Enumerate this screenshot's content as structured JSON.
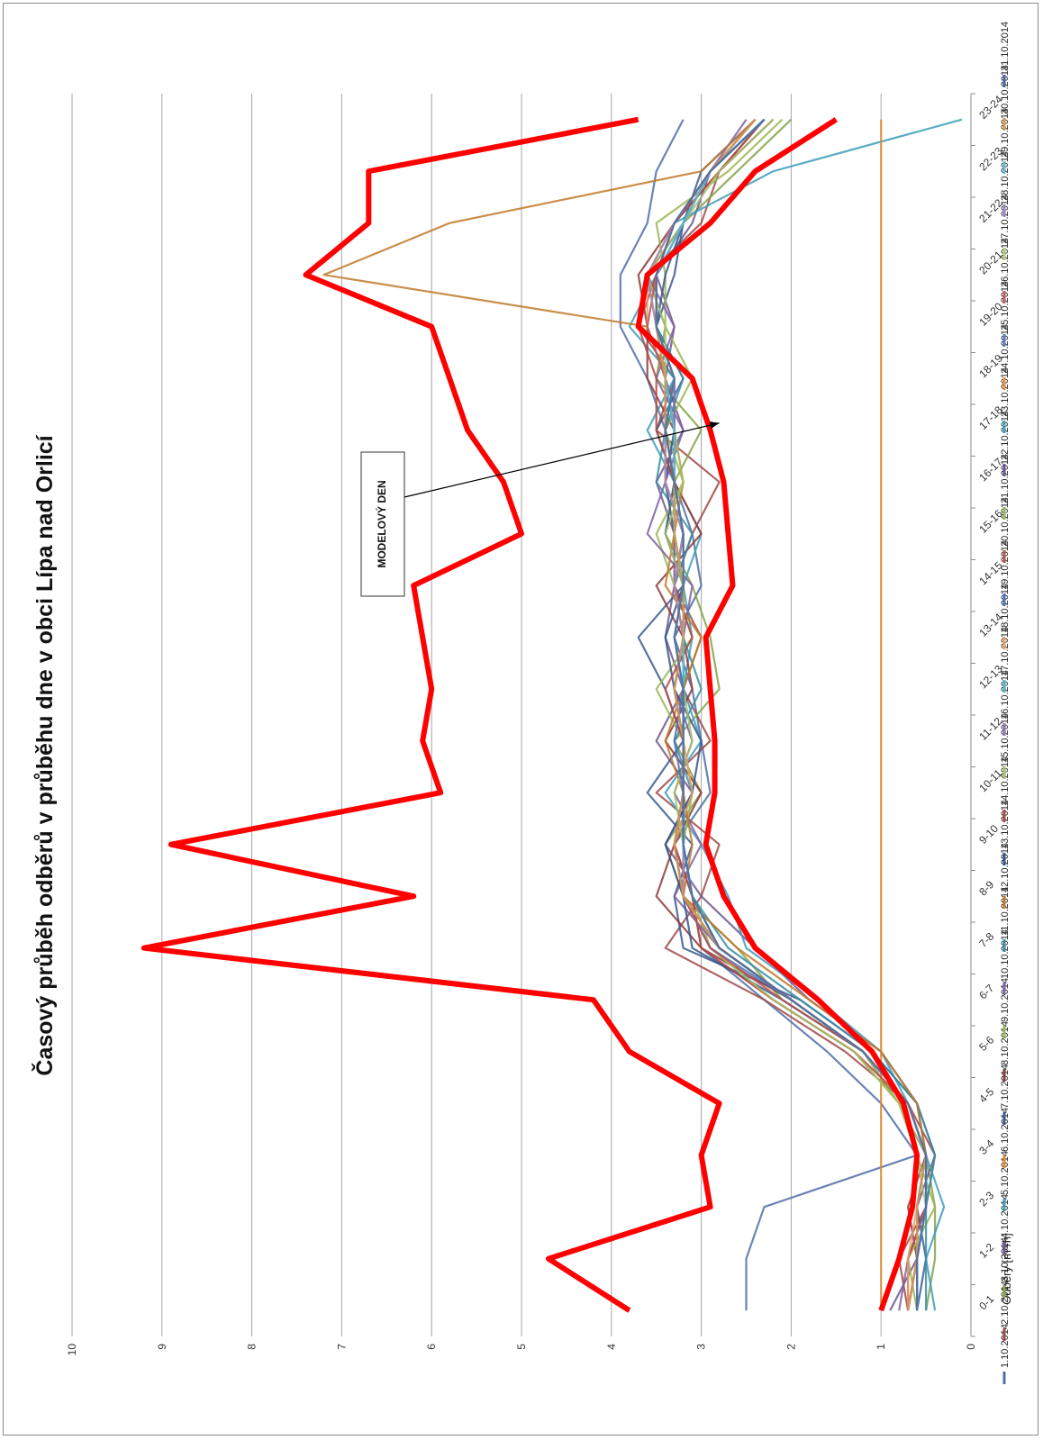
{
  "chart_data": {
    "type": "line",
    "title": "Časový průběh odběrů v průběhu dne v obci Lípa nad Orlicí",
    "xlabel": "",
    "ylabel": "Odběry [m³/h]",
    "ylim": [
      0,
      10
    ],
    "yticks": [
      "0",
      "1",
      "2",
      "3",
      "4",
      "5",
      "6",
      "7",
      "8",
      "9",
      "10"
    ],
    "grid": true,
    "legend_position": "right",
    "orientation": "rotated-90",
    "categories": [
      "0-1",
      "1-2",
      "2-3",
      "3-4",
      "4-5",
      "5-6",
      "6-7",
      "7-8",
      "8-9",
      "9-10",
      "10-11",
      "11-12",
      "12-13",
      "13-14",
      "14-15",
      "15-16",
      "16-17",
      "17-18",
      "18-19",
      "19-20",
      "20-21",
      "21-22",
      "22-23",
      "23-24"
    ],
    "series": [
      {
        "name": "1.10.2014",
        "color": "#4f6fa8",
        "values": [
          2.5,
          2.5,
          2.3,
          0.6,
          1.0,
          1.6,
          2.3,
          3.0,
          3.1,
          3.3,
          2.9,
          3.0,
          3.1,
          3.3,
          3.0,
          3.1,
          3.3,
          3.4,
          3.6,
          3.9,
          3.9,
          3.6,
          3.5,
          3.2
        ]
      },
      {
        "name": "2.10.2014",
        "color": "#a04a48",
        "values": [
          0.7,
          0.8,
          0.5,
          0.4,
          0.7,
          1.4,
          2.3,
          3.4,
          3.0,
          2.8,
          3.5,
          2.9,
          3.2,
          3.0,
          3.3,
          3.1,
          2.8,
          3.5,
          3.3,
          3.7,
          3.6,
          3.0,
          2.8,
          2.2
        ]
      },
      {
        "name": "3.10.2014",
        "color": "#84a24a",
        "values": [
          0.5,
          0.4,
          0.4,
          0.5,
          0.8,
          1.2,
          2.1,
          2.6,
          3.2,
          3.4,
          3.0,
          3.3,
          2.8,
          2.9,
          3.1,
          3.4,
          3.3,
          3.0,
          3.5,
          3.4,
          3.6,
          3.2,
          2.6,
          2.0
        ]
      },
      {
        "name": "4.10.2014",
        "color": "#6e568f",
        "values": [
          0.9,
          0.6,
          0.6,
          0.4,
          0.6,
          1.0,
          1.8,
          2.4,
          3.0,
          3.4,
          3.1,
          3.5,
          3.2,
          3.4,
          3.3,
          3.3,
          3.5,
          3.2,
          3.4,
          3.3,
          3.5,
          3.1,
          2.9,
          2.3
        ]
      },
      {
        "name": "5.10.2014",
        "color": "#3e9eb8",
        "values": [
          0.4,
          0.5,
          0.3,
          0.5,
          0.7,
          1.0,
          1.7,
          2.5,
          2.7,
          3.0,
          3.4,
          3.0,
          3.2,
          3.1,
          3.2,
          3.0,
          3.3,
          3.6,
          3.3,
          3.8,
          3.5,
          3.3,
          2.2,
          0.1
        ]
      },
      {
        "name": "6.10.2014",
        "color": "#e08a2c",
        "values": [
          1.0,
          1.0,
          1.0,
          1.0,
          1.0,
          1.0,
          1.0,
          1.0,
          1.0,
          1.0,
          1.0,
          1.0,
          1.0,
          1.0,
          1.0,
          1.0,
          1.0,
          1.0,
          1.0,
          1.0,
          1.0,
          1.0,
          1.0,
          1.0
        ]
      },
      {
        "name": "7.10.2014",
        "color": "#3a5a90",
        "values": [
          0.6,
          0.5,
          0.6,
          0.5,
          0.6,
          1.1,
          1.9,
          3.2,
          3.3,
          3.1,
          3.6,
          3.2,
          3.4,
          3.7,
          3.2,
          3.4,
          3.3,
          3.5,
          3.2,
          3.5,
          3.3,
          3.2,
          3.0,
          2.4
        ]
      },
      {
        "name": "8.10.2014",
        "color": "#8e3a3a",
        "values": [
          0.7,
          0.6,
          0.7,
          0.5,
          0.7,
          1.2,
          2.0,
          3.0,
          3.5,
          3.3,
          3.0,
          3.4,
          3.1,
          3.2,
          3.5,
          3.0,
          3.3,
          3.3,
          3.6,
          3.6,
          3.7,
          3.3,
          2.8,
          2.3
        ]
      },
      {
        "name": "9.10.2014",
        "color": "#9bb653",
        "values": [
          0.6,
          0.7,
          0.4,
          0.6,
          0.8,
          1.3,
          2.2,
          2.9,
          3.1,
          3.2,
          3.1,
          3.2,
          3.5,
          3.1,
          3.3,
          3.5,
          3.2,
          3.4,
          3.1,
          3.4,
          3.4,
          3.5,
          2.7,
          2.1
        ]
      },
      {
        "name": "10.10.2014",
        "color": "#7c61a4",
        "values": [
          0.8,
          0.7,
          0.5,
          0.5,
          0.7,
          1.2,
          2.0,
          2.8,
          3.3,
          3.0,
          3.3,
          3.1,
          3.3,
          3.2,
          3.1,
          3.6,
          3.4,
          3.2,
          3.5,
          3.3,
          3.6,
          3.2,
          2.9,
          2.5
        ]
      },
      {
        "name": "11.10.2014",
        "color": "#3a8ea6",
        "values": [
          0.5,
          0.5,
          0.5,
          0.4,
          0.6,
          1.1,
          1.9,
          2.7,
          3.1,
          3.3,
          3.1,
          3.3,
          3.0,
          3.2,
          3.3,
          3.1,
          3.5,
          3.4,
          3.2,
          3.5,
          3.5,
          3.3,
          2.9,
          2.3
        ]
      },
      {
        "name": "12.10.2014",
        "color": "#c07a2a",
        "values": [
          0.7,
          0.6,
          0.6,
          0.5,
          0.6,
          1.0,
          1.8,
          2.6,
          3.2,
          3.1,
          3.2,
          3.4,
          3.2,
          3.0,
          3.4,
          3.3,
          3.2,
          3.3,
          3.4,
          3.6,
          7.2,
          5.8,
          3.0,
          2.4
        ]
      },
      {
        "name": "13.10.2014",
        "color": "#35558c",
        "values": [
          0.6,
          0.6,
          0.6,
          0.5,
          0.7,
          1.2,
          2.1,
          3.1,
          3.2,
          3.4,
          3.1,
          3.0,
          3.3,
          3.4,
          3.2,
          3.3,
          3.4,
          3.3,
          3.3,
          3.5,
          3.4,
          3.2,
          2.9,
          2.4
        ]
      },
      {
        "name": "14.10.2014",
        "color": "#b04845",
        "values": [
          0.7,
          0.7,
          0.5,
          0.5,
          0.7,
          1.3,
          2.2,
          3.0,
          3.1,
          3.3,
          3.2,
          3.2,
          3.4,
          3.1,
          3.3,
          3.2,
          3.3,
          3.5,
          3.5,
          3.7,
          3.5,
          3.3,
          2.8,
          2.3
        ]
      },
      {
        "name": "15.10.2014",
        "color": "#a7c06a",
        "values": [
          0.6,
          0.6,
          0.5,
          0.6,
          0.8,
          1.3,
          2.2,
          2.9,
          3.2,
          3.2,
          3.3,
          3.1,
          3.2,
          3.3,
          3.2,
          3.4,
          3.2,
          3.3,
          3.4,
          3.4,
          3.6,
          3.2,
          2.8,
          2.2
        ]
      },
      {
        "name": "16.10.2014",
        "color": "#8e78b2",
        "values": [
          0.7,
          0.6,
          0.6,
          0.5,
          0.7,
          1.2,
          2.0,
          2.8,
          3.2,
          3.3,
          3.2,
          3.2,
          3.3,
          3.2,
          3.2,
          3.3,
          3.3,
          3.3,
          3.3,
          3.5,
          3.5,
          3.2,
          2.9,
          2.4
        ]
      },
      {
        "name": "17.10.2014",
        "color": "#4fb4c8",
        "values": [
          0.6,
          0.6,
          0.5,
          0.5,
          0.7,
          1.2,
          2.0,
          2.8,
          3.1,
          3.2,
          3.2,
          3.2,
          3.2,
          3.2,
          3.2,
          3.2,
          3.3,
          3.4,
          3.3,
          3.5,
          3.5,
          3.3,
          2.9,
          2.3
        ]
      },
      {
        "name": "18.10.2014",
        "color": "#e6a064",
        "values": [
          0.7,
          0.7,
          0.6,
          0.5,
          0.7,
          1.2,
          2.0,
          2.8,
          3.2,
          3.3,
          3.1,
          3.2,
          3.3,
          3.2,
          3.3,
          3.2,
          3.4,
          3.4,
          3.4,
          3.6,
          3.6,
          3.3,
          2.9,
          2.4
        ]
      },
      {
        "name": "19.10.2014",
        "color": "#4a72c0",
        "values": [
          0.7,
          0.6,
          0.6,
          0.5,
          0.7,
          1.2,
          2.0,
          2.9,
          3.2,
          3.3,
          3.2,
          3.3,
          3.2,
          3.3,
          3.2,
          3.3,
          3.3,
          3.4,
          3.4,
          3.5,
          3.5,
          3.2,
          2.9,
          2.3
        ]
      },
      {
        "name": "20.10.2014",
        "color": "#b85452",
        "values": [
          0.6,
          0.6,
          0.5,
          0.5,
          0.7,
          1.2,
          2.1,
          2.9,
          3.2,
          3.2,
          3.2,
          3.2,
          3.3,
          3.2,
          3.3,
          3.2,
          3.3,
          3.4,
          3.4,
          3.6,
          3.5,
          3.3,
          2.9,
          2.4
        ]
      },
      {
        "name": "21.10.2014",
        "color": "#96b85a",
        "values": [
          0.6,
          0.6,
          0.5,
          0.5,
          0.7,
          1.2,
          2.0,
          2.8,
          3.1,
          3.2,
          3.2,
          3.2,
          3.2,
          3.2,
          3.2,
          3.3,
          3.3,
          3.3,
          3.4,
          3.5,
          3.5,
          3.2,
          2.9,
          2.3
        ]
      },
      {
        "name": "22.10.2014",
        "color": "#6a5494",
        "values": [
          0.7,
          0.6,
          0.6,
          0.5,
          0.7,
          1.2,
          2.0,
          2.8,
          3.2,
          3.3,
          3.2,
          3.2,
          3.3,
          3.2,
          3.2,
          3.3,
          3.3,
          3.4,
          3.4,
          3.5,
          3.5,
          3.3,
          2.9,
          2.4
        ]
      },
      {
        "name": "23.10.2014",
        "color": "#42a4bc",
        "values": [
          0.6,
          0.6,
          0.5,
          0.5,
          0.7,
          1.2,
          2.0,
          2.8,
          3.1,
          3.2,
          3.2,
          3.2,
          3.2,
          3.3,
          3.2,
          3.2,
          3.3,
          3.4,
          3.3,
          3.5,
          3.5,
          3.3,
          2.9,
          2.3
        ]
      },
      {
        "name": "24.10.2014",
        "color": "#e89040",
        "values": [
          0.7,
          0.6,
          0.6,
          0.5,
          0.7,
          1.2,
          2.0,
          2.8,
          3.2,
          3.2,
          3.2,
          3.2,
          3.3,
          3.2,
          3.3,
          3.2,
          3.4,
          3.4,
          3.4,
          3.5,
          3.6,
          3.3,
          2.9,
          2.4
        ]
      },
      {
        "name": "25.10.2014",
        "color": "#5a7cc0",
        "values": [
          0.6,
          0.6,
          0.5,
          0.5,
          0.7,
          1.2,
          2.0,
          2.8,
          3.1,
          3.2,
          3.2,
          3.2,
          3.2,
          3.2,
          3.2,
          3.3,
          3.3,
          3.3,
          3.4,
          3.5,
          3.5,
          3.2,
          2.9,
          2.3
        ]
      },
      {
        "name": "26.10.2014",
        "color": "#c06260",
        "values": [
          0.7,
          0.6,
          0.6,
          0.5,
          0.7,
          1.2,
          2.0,
          2.8,
          3.2,
          3.3,
          3.2,
          3.2,
          3.3,
          3.2,
          3.2,
          3.3,
          3.3,
          3.4,
          3.4,
          3.5,
          3.5,
          3.3,
          2.9,
          2.4
        ]
      },
      {
        "name": "27.10.2014",
        "color": "#b4cc78",
        "values": [
          0.6,
          0.6,
          0.5,
          0.5,
          0.7,
          1.2,
          2.0,
          2.8,
          3.1,
          3.2,
          3.2,
          3.2,
          3.2,
          3.3,
          3.2,
          3.2,
          3.3,
          3.4,
          3.3,
          3.5,
          3.5,
          3.3,
          2.9,
          2.3
        ]
      },
      {
        "name": "28.10.2014",
        "color": "#9c88c0",
        "values": [
          0.7,
          0.6,
          0.6,
          0.5,
          0.7,
          1.2,
          2.0,
          2.8,
          3.2,
          3.2,
          3.2,
          3.2,
          3.3,
          3.2,
          3.3,
          3.2,
          3.4,
          3.4,
          3.4,
          3.5,
          3.6,
          3.3,
          2.9,
          2.4
        ]
      },
      {
        "name": "29.10.2014",
        "color": "#5cbcd0",
        "values": [
          0.6,
          0.6,
          0.5,
          0.5,
          0.7,
          1.2,
          2.0,
          2.8,
          3.1,
          3.2,
          3.2,
          3.2,
          3.2,
          3.2,
          3.2,
          3.3,
          3.3,
          3.3,
          3.4,
          3.5,
          3.5,
          3.2,
          2.9,
          2.3
        ]
      },
      {
        "name": "30.10.2014",
        "color": "#d89a48",
        "values": [
          0.7,
          0.6,
          0.6,
          0.5,
          0.7,
          1.2,
          2.0,
          2.8,
          3.2,
          3.3,
          3.2,
          3.2,
          3.3,
          3.2,
          3.2,
          3.3,
          3.3,
          3.4,
          3.4,
          3.5,
          3.5,
          3.3,
          2.9,
          2.4
        ]
      },
      {
        "name": "31.10.2014",
        "color": "#4466a8",
        "values": [
          0.6,
          0.6,
          0.5,
          0.5,
          0.7,
          1.2,
          2.0,
          2.8,
          3.1,
          3.2,
          3.2,
          3.2,
          3.2,
          3.3,
          3.2,
          3.2,
          3.3,
          3.4,
          3.3,
          3.5,
          3.5,
          3.3,
          2.9,
          2.3
        ]
      }
    ],
    "envelope": {
      "color": "#ff0000",
      "values": [
        3.8,
        4.7,
        2.9,
        3.0,
        2.8,
        3.8,
        4.2,
        9.2,
        6.2,
        8.9,
        5.9,
        6.1,
        6.0,
        6.1,
        6.2,
        5.0,
        5.2,
        5.6,
        5.8,
        6.0,
        7.4,
        6.7,
        6.7,
        3.7
      ]
    },
    "model_day": {
      "color": "#ff0000",
      "values": [
        1.0,
        0.8,
        0.65,
        0.6,
        0.75,
        1.1,
        1.7,
        2.4,
        2.75,
        2.95,
        2.85,
        2.85,
        2.9,
        2.95,
        2.65,
        2.7,
        2.75,
        2.9,
        3.1,
        3.7,
        3.6,
        2.9,
        2.4,
        1.5
      ]
    },
    "annotation": {
      "text": "MODELOVÝ DEN",
      "points_to": "model_day",
      "category": "17-18",
      "value": 2.8
    }
  }
}
